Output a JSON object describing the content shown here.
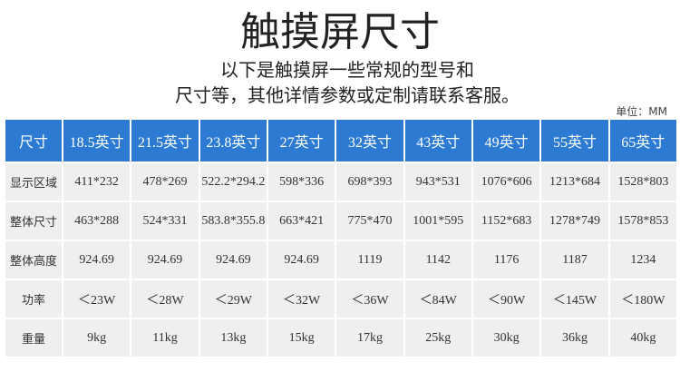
{
  "header": {
    "title": "触摸屏尺寸",
    "subtitle_lines": [
      "以下是触摸屏一些常规的型号和",
      "尺寸等，其他详情参数或定制请联系客服。"
    ],
    "unit": "单位：MM"
  },
  "table": {
    "header": [
      "尺寸",
      "18.5英寸",
      "21.5英寸",
      "23.8英寸",
      "27英寸",
      "32英寸",
      "43英寸",
      "49英寸",
      "55英寸",
      "65英寸"
    ],
    "rows": [
      [
        "显示区域",
        "411*232",
        "478*269",
        "522.2*294.2",
        "598*336",
        "698*393",
        "943*531",
        "1076*606",
        "1213*684",
        "1528*803"
      ],
      [
        "整体尺寸",
        "463*288",
        "524*331",
        "583.8*355.8",
        "663*421",
        "775*470",
        "1001*595",
        "1152*683",
        "1278*749",
        "1578*853"
      ],
      [
        "整体高度",
        "924.69",
        "924.69",
        "924.69",
        "924.69",
        "1119",
        "1142",
        "1176",
        "1187",
        "1234"
      ],
      [
        "功率",
        "＜23W",
        "＜28W",
        "＜29W",
        "＜32W",
        "＜36W",
        "＜84W",
        "＜90W",
        "＜145W",
        "＜180W"
      ],
      [
        "重量",
        "9kg",
        "11kg",
        "13kg",
        "15kg",
        "17kg",
        "25kg",
        "30kg",
        "36kg",
        "40kg"
      ]
    ]
  }
}
